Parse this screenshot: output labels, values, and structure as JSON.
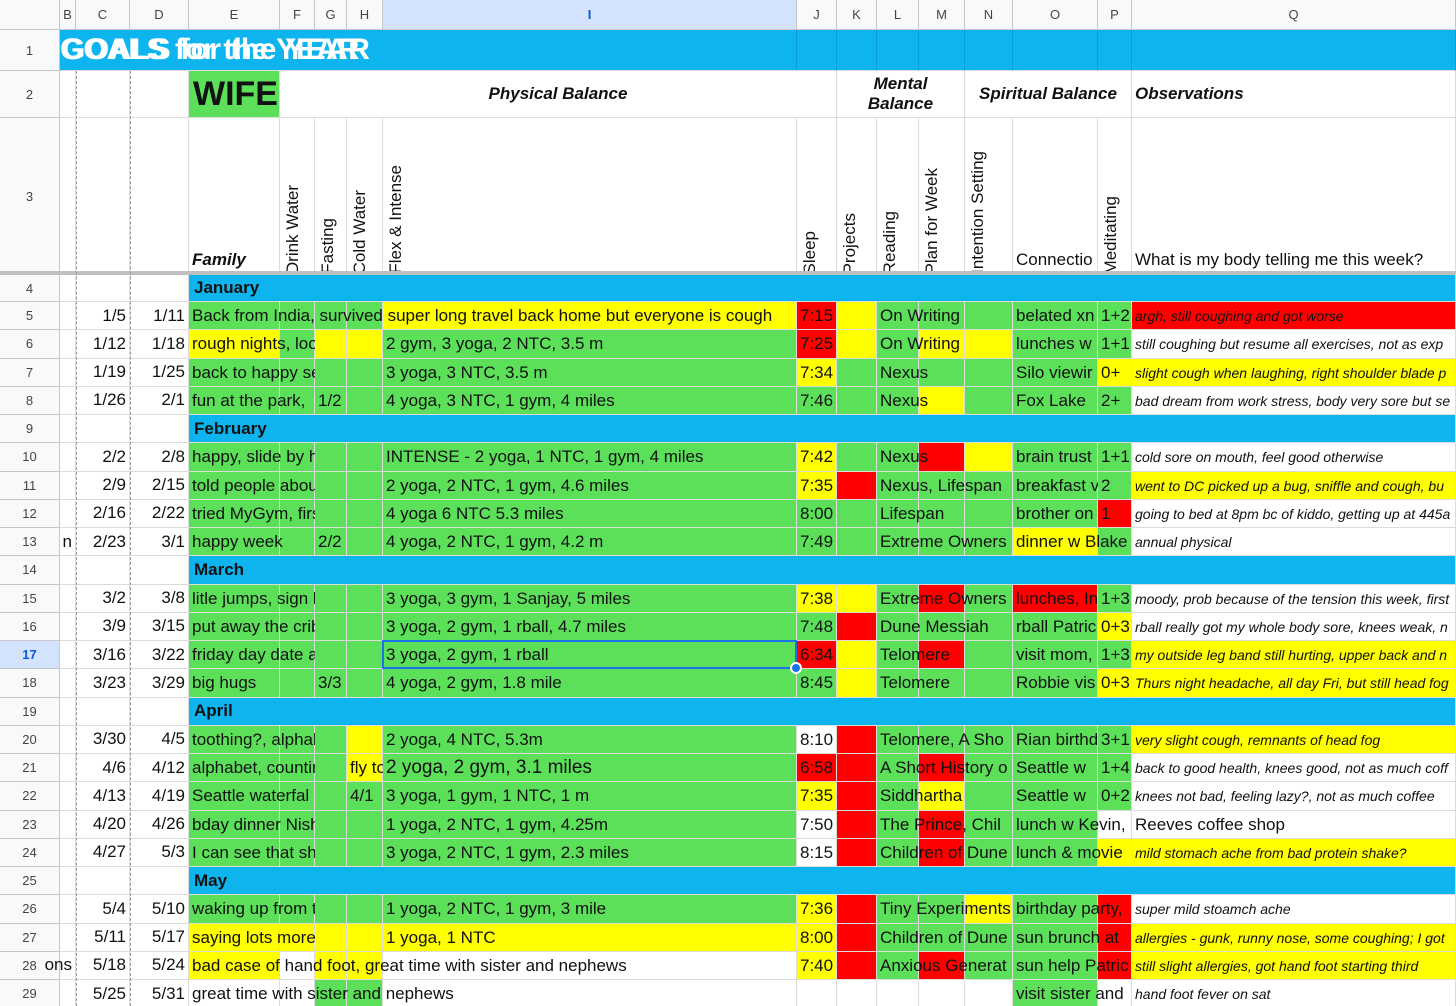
{
  "columns": [
    "B",
    "C",
    "D",
    "E",
    "F",
    "G",
    "H",
    "I",
    "J",
    "K",
    "L",
    "M",
    "N",
    "O",
    "P",
    "Q"
  ],
  "selected_column": "I",
  "selected_row": "17",
  "row_numbers": [
    "1",
    "2",
    "3",
    "4",
    "5",
    "6",
    "7",
    "8",
    "9",
    "10",
    "11",
    "12",
    "13",
    "14",
    "15",
    "16",
    "17",
    "18",
    "19",
    "20",
    "21",
    "22",
    "23",
    "24",
    "25",
    "26",
    "27",
    "28",
    "29"
  ],
  "colors": {
    "green": "#5ce05a",
    "yellow": "#ffff00",
    "red": "#ff0000",
    "blue": "#0db4ee",
    "selection": "#1a73e8"
  },
  "title": "GOALS for the YEAR",
  "person": "WIFE",
  "sections": {
    "physical": "Physical Balance",
    "mental": "Mental Balance",
    "spiritual": "Spiritual Balance",
    "observations": "Observations"
  },
  "headers": {
    "family": "Family",
    "drink_water": "Drink Water",
    "fasting": "Fasting",
    "cold_water": "Cold Water",
    "flex_intense": "Flex & Intense",
    "sleep": "Sleep",
    "projects": "Projects",
    "reading": "Reading",
    "plan_week": "Plan for Week",
    "intention": "Intention Setting",
    "connection": "Connectio",
    "meditating": "Meditating",
    "body": "What is my body telling me this week?"
  },
  "months": {
    "january": "January",
    "february": "February",
    "march": "March",
    "april": "April",
    "may": "May"
  },
  "rows": [
    {
      "start": "1/5",
      "end": "1/11",
      "family": "Back from India, survived super long travel back home but everyone is cough",
      "exercise": "",
      "sleep": "7:15",
      "reading": "On Writing",
      "connection": "belated xn",
      "meditating": "1+2",
      "obs": "argh, still coughing and got worse"
    },
    {
      "start": "1/12",
      "end": "1/18",
      "family": "rough nights, looking de",
      "exercise": "2 gym, 3 yoga, 2 NTC, 3.5 m",
      "sleep": "7:25",
      "reading": "On Writing",
      "connection": "lunches w",
      "meditating": "1+1",
      "obs": "still coughing but resume all exercises, not as exp"
    },
    {
      "start": "1/19",
      "end": "1/25",
      "family": "back to happy self! sleep",
      "exercise": "3 yoga, 3 NTC, 3.5 m",
      "sleep": "7:34",
      "reading": "Nexus",
      "connection": "Silo viewir",
      "meditating": "0+",
      "obs": "slight cough when laughing, right shoulder blade p"
    },
    {
      "start": "1/26",
      "end": "2/1",
      "family": "fun at the park,",
      "g_val": "1/2",
      "exercise": "4 yoga, 3 NTC, 1 gym, 4 miles",
      "sleep": "7:46",
      "reading": "Nexus",
      "connection": "Fox Lake",
      "meditating": "2+",
      "obs": "bad dream from work stress, body very sore but se"
    },
    {
      "start": "2/2",
      "end": "2/8",
      "family": "happy, slide by herself, v",
      "exercise": "INTENSE - 2 yoga, 1 NTC, 1 gym, 4 miles",
      "sleep": "7:42",
      "reading": "Nexus",
      "connection": "brain trust",
      "meditating": "1+1",
      "obs": "cold sore on mouth, feel good otherwise"
    },
    {
      "start": "2/9",
      "end": "2/15",
      "family": "told people about baby #",
      "exercise": "2 yoga, 2 NTC, 1 gym, 4.6 miles",
      "sleep": "7:35",
      "reading": "Nexus, Lifespan",
      "connection": "breakfast v",
      "meditating": "2",
      "obs": "went to DC picked up a bug, sniffle and cough, bu"
    },
    {
      "start": "2/16",
      "end": "2/22",
      "family": "tried MyGym, first bit of c",
      "exercise": "4 yoga 6 NTC 5.3 miles",
      "sleep": "8:00",
      "reading": "Lifespan",
      "connection": "brother on",
      "meditating": "1",
      "obs": "going to bed at 8pm bc of kiddo, getting up at 445a"
    },
    {
      "start": "2/23",
      "end": "3/1",
      "b_val": "n",
      "family": "happy week",
      "g_val": "2/2",
      "exercise": "4 yoga, 2 NTC, 1 gym, 4.2 m",
      "sleep": "7:49",
      "reading": "Extreme Owners",
      "connection": "dinner w Blake",
      "meditating": "",
      "obs": "annual physical"
    },
    {
      "start": "3/2",
      "end": "3/8",
      "family": "litle jumps, sign languag",
      "exercise": "3 yoga, 3 gym, 1 Sanjay, 5 miles",
      "sleep": "7:38",
      "reading": "Extreme Owners",
      "connection": "lunches, In",
      "meditating": "1+3",
      "obs": "moody, prob because of the tension this week, first"
    },
    {
      "start": "3/9",
      "end": "3/15",
      "family": "put away the crib, count",
      "exercise": "3 yoga, 2 gym, 1 rball, 4.7 miles",
      "sleep": "7:48",
      "reading": "Dune Messiah",
      "connection": "rball Patric",
      "meditating": "0+3",
      "obs": "rball really got my whole body sore, knees weak, n"
    },
    {
      "start": "3/16",
      "end": "3/22",
      "family": "friday day date at Stuart",
      "exercise": "3 yoga, 2 gym, 1 rball",
      "sleep": "6:34",
      "reading": "Telomere",
      "connection": "visit mom,",
      "meditating": "1+3",
      "obs": "my outside leg band still hurting, upper back and n"
    },
    {
      "start": "3/23",
      "end": "3/29",
      "family": "big hugs",
      "g_val": "3/3",
      "exercise": "4 yoga, 2 gym, 1.8 mile",
      "sleep": "8:45",
      "reading": "Telomere",
      "connection": "Robbie vis",
      "meditating": "0+3",
      "obs": "Thurs night headache, all day Fri, but still head fog"
    },
    {
      "start": "3/30",
      "end": "4/5",
      "family": "toothing?, alphabet",
      "exercise": "2 yoga, 4 NTC, 5.3m",
      "sleep": "8:10",
      "reading": "Telomere, A Sho",
      "connection": "Rian birthd",
      "meditating": "3+1",
      "obs": "very slight cough, remnants of head fog"
    },
    {
      "start": "4/6",
      "end": "4/12",
      "family": "alphabet, counting,",
      "g_val": "fly to",
      "exercise": "2 yoga, 2 gym, 3.1 miles",
      "sleep": "6:58",
      "reading": "A Short History o",
      "connection": "Seattle w",
      "meditating": "1+4",
      "obs": "back to good health, knees good, not as much coff"
    },
    {
      "start": "4/13",
      "end": "4/19",
      "family": "Seattle waterfal",
      "g_val": "4/1",
      "exercise": "3 yoga, 1 gym, 1 NTC, 1 m",
      "sleep": "7:35",
      "reading": "Siddhartha",
      "connection": "Seattle w",
      "meditating": "0+2",
      "obs": "knees not bad, feeling lazy?, not as much coffee"
    },
    {
      "start": "4/20",
      "end": "4/26",
      "family": "bday dinner Nishi, dropp",
      "exercise": "1 yoga, 2 NTC, 1 gym, 4.25m",
      "sleep": "7:50",
      "reading": "The Prince, Chil",
      "connection": "lunch w Kevin,",
      "meditating": "",
      "obs": "Reeves coffee shop"
    },
    {
      "start": "4/27",
      "end": "5/3",
      "family": "I can see that she's think",
      "exercise": "3 yoga, 2 NTC, 1 gym, 2.3 miles",
      "sleep": "8:15",
      "reading": "Children of Dune",
      "connection": "lunch & movie",
      "meditating": "",
      "obs": "mild stomach ache from bad protein shake?"
    },
    {
      "start": "5/4",
      "end": "5/10",
      "family": "waking up from toddler b",
      "exercise": "1 yoga, 2 NTC, 1 gym, 3 mile",
      "sleep": "7:36",
      "reading": "Tiny Experiments",
      "connection": "birthday party,",
      "meditating": "",
      "obs": "super mild stoamch ache"
    },
    {
      "start": "5/11",
      "end": "5/17",
      "family": "saying lots more words,",
      "exercise": "1 yoga, 1 NTC",
      "sleep": "8:00",
      "reading": "Children of Dune",
      "connection": "sun brunch at",
      "meditating": "",
      "obs": "allergies - gunk, runny nose, some coughing; I got"
    },
    {
      "start": "5/18",
      "end": "5/24",
      "b_val": "ons",
      "family": "bad case of hand foot, great time with sister and nephews",
      "exercise": "",
      "sleep": "7:40",
      "reading": "Anxious Generat",
      "connection": "sun help Patric",
      "meditating": "",
      "obs": "still slight allergies, got hand foot starting third"
    },
    {
      "start": "5/25",
      "end": "5/31",
      "family": "great time with sister and nephews",
      "exercise": "",
      "sleep": "",
      "reading": "",
      "connection": "visit sister and",
      "meditating": "",
      "obs": "hand foot fever on sat"
    }
  ]
}
